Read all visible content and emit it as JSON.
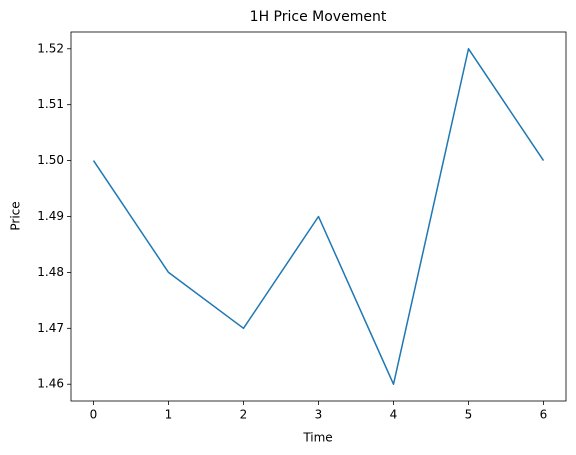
{
  "chart_data": {
    "type": "line",
    "title": "1H Price Movement",
    "x_label": "Time",
    "y_label": "Price",
    "x": [
      0,
      1,
      2,
      3,
      4,
      5,
      6
    ],
    "series": [
      {
        "color": "#1f77b4",
        "values": [
          1.5,
          1.48,
          1.47,
          1.49,
          1.46,
          1.52,
          1.5
        ]
      }
    ],
    "xlim": [
      -0.3,
      6.3
    ],
    "xticks": [
      0,
      1,
      2,
      3,
      4,
      5,
      6
    ],
    "ylim": [
      1.457,
      1.523
    ],
    "yticks": [
      1.46,
      1.47,
      1.48,
      1.49,
      {
        "value": 1.5,
        "label": "1.50"
      },
      1.51,
      1.52
    ],
    "grid": false
  }
}
